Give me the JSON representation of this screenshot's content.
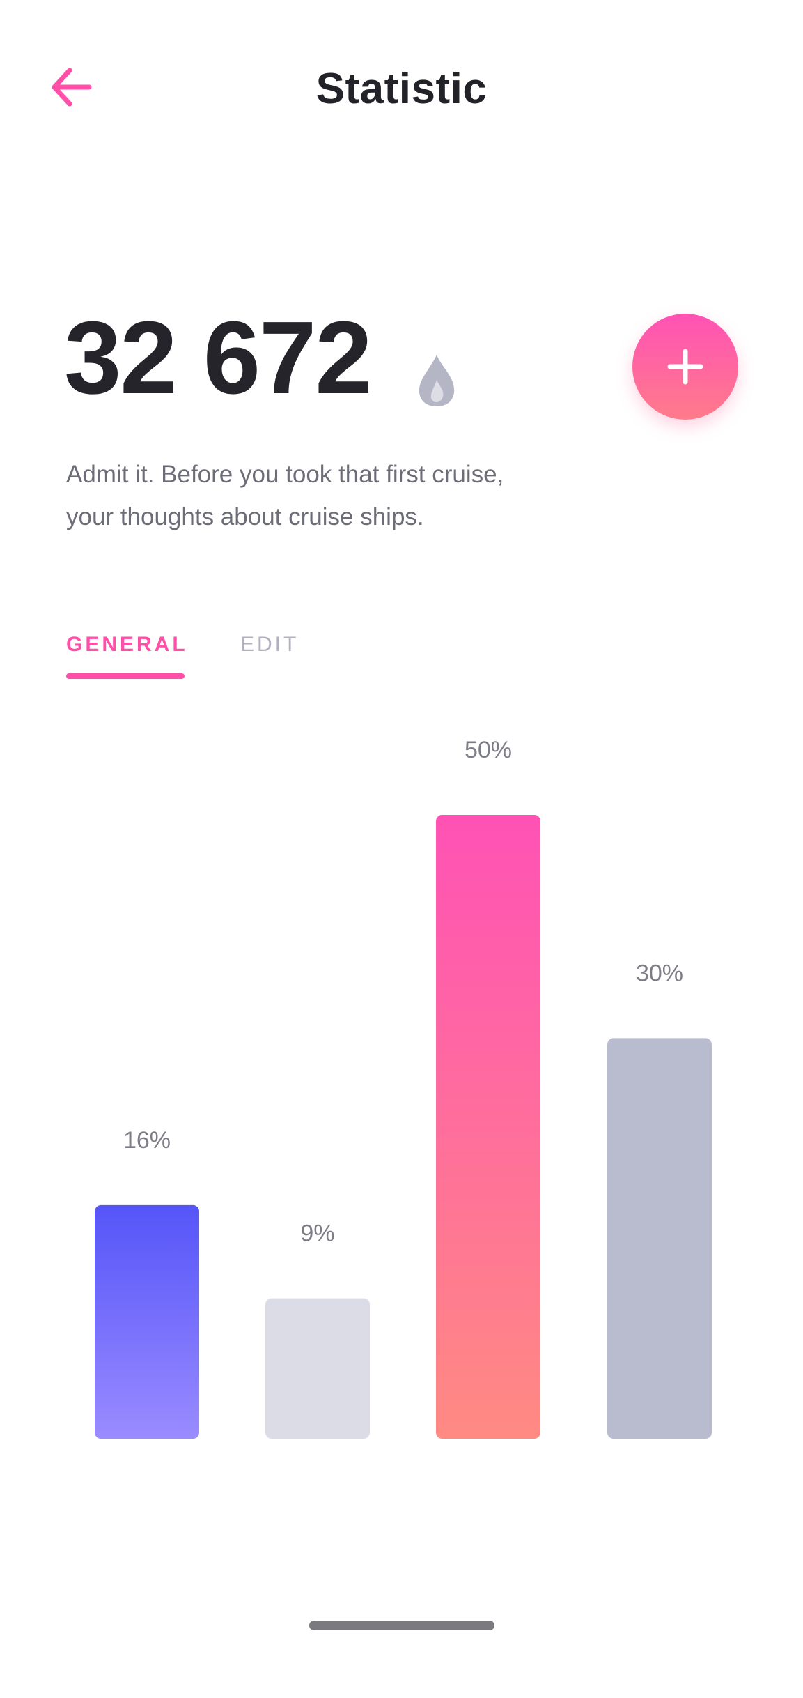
{
  "header": {
    "title": "Statistic",
    "back_icon": "arrow-left-icon"
  },
  "summary": {
    "value": "32 672",
    "icon": "drop-icon",
    "add_icon": "plus-icon",
    "description_line1": "Admit it. Before you took that first cruise,",
    "description_line2": "your thoughts about cruise ships."
  },
  "tabs": [
    {
      "label": "GENERAL",
      "active": true
    },
    {
      "label": "EDIT",
      "active": false
    }
  ],
  "colors": {
    "accent_pink": "#ff4fa8",
    "text_dark": "#25242b",
    "text_muted": "#6d6d78"
  },
  "chart_data": {
    "type": "bar",
    "values": [
      16,
      9,
      50,
      30
    ],
    "labels": [
      "16%",
      "9%",
      "50%",
      "30%"
    ],
    "bar_colors": [
      [
        "#5555f8",
        "#9a8bff"
      ],
      [
        "#dcdce6",
        "#dcdce6"
      ],
      [
        "#ff52b5",
        "#ff8a82"
      ],
      [
        "#b9bbcf",
        "#b9bbcf"
      ]
    ],
    "label_color": "#7d7d88"
  }
}
